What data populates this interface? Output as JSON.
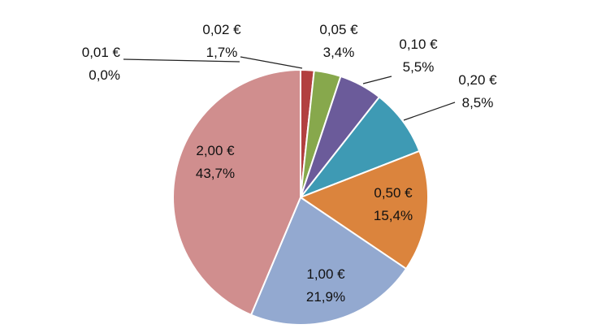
{
  "chart_data": {
    "type": "pie",
    "title": "",
    "start_angle_deg": 0,
    "direction": "clockwise",
    "legend": "none",
    "slices": [
      {
        "label": "0,01 €",
        "percent_label": "0,0%",
        "value": 0.0,
        "color": "#8E3B3B"
      },
      {
        "label": "0,02 €",
        "percent_label": "1,7%",
        "value": 1.7,
        "color": "#B24040"
      },
      {
        "label": "0,05 €",
        "percent_label": "3,4%",
        "value": 3.4,
        "color": "#87A84C"
      },
      {
        "label": "0,10 €",
        "percent_label": "5,5%",
        "value": 5.5,
        "color": "#6B5B9A"
      },
      {
        "label": "0,20 €",
        "percent_label": "8,5%",
        "value": 8.5,
        "color": "#3E9AB4"
      },
      {
        "label": "0,50 €",
        "percent_label": "15,4%",
        "value": 15.4,
        "color": "#DB843D"
      },
      {
        "label": "1,00 €",
        "percent_label": "21,9%",
        "value": 21.9,
        "color": "#93A9D0"
      },
      {
        "label": "2,00 €",
        "percent_label": "43,7%",
        "value": 43.7,
        "color": "#D08E8E"
      }
    ]
  }
}
